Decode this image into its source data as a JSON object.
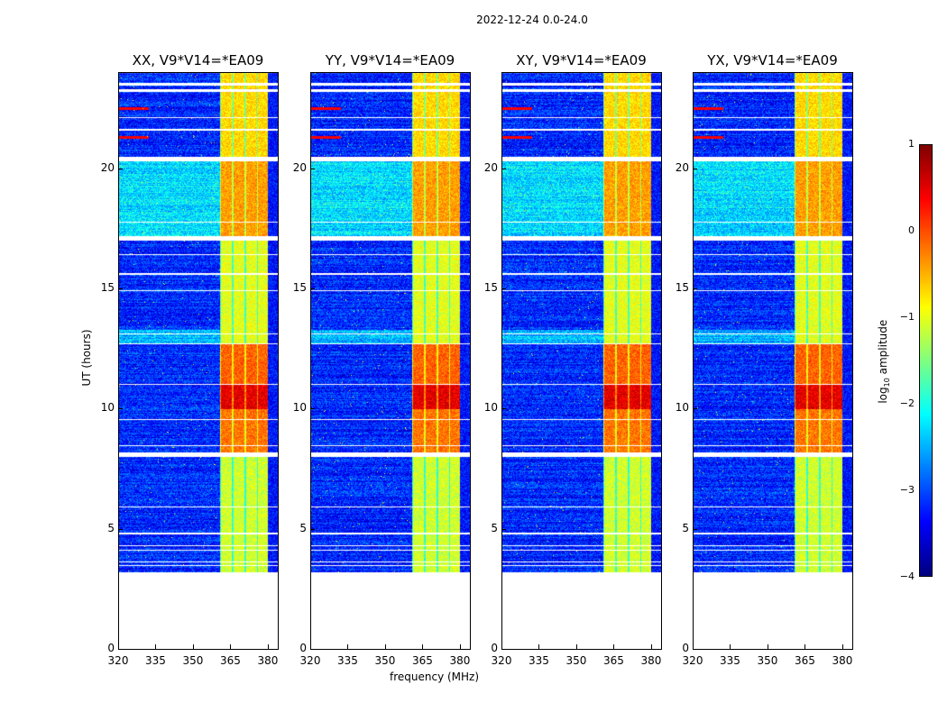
{
  "chart_data": {
    "type": "heatmap",
    "title": "2022-12-24 0.0-24.0",
    "xlabel": "frequency (MHz)",
    "ylabel": "UT (hours)",
    "xlim": [
      320,
      384
    ],
    "ylim": [
      0,
      24
    ],
    "xticks": [
      "320",
      "335",
      "350",
      "365",
      "380"
    ],
    "xtick_values": [
      320,
      335,
      350,
      365,
      380
    ],
    "yticks": [
      "0",
      "5",
      "10",
      "15",
      "20"
    ],
    "ytick_values": [
      0,
      5,
      10,
      15,
      20
    ],
    "panels": [
      {
        "title": "XX, V9*V14=*EA09",
        "seed": 1
      },
      {
        "title": "YY, V9*V14=*EA09",
        "seed": 2
      },
      {
        "title": "XY, V9*V14=*EA09",
        "seed": 3
      },
      {
        "title": "YX, V9*V14=*EA09",
        "seed": 4
      }
    ],
    "data_start_hour": 3.1,
    "rfi_band_mhz": [
      360.5,
      380
    ],
    "background_log_amp": -3.2,
    "rfi_level_periods": [
      {
        "hours": [
          3.1,
          8.2
        ],
        "level": -1.1
      },
      {
        "hours": [
          8.2,
          10.0
        ],
        "level": -0.2
      },
      {
        "hours": [
          10.0,
          11.0
        ],
        "level": 0.5
      },
      {
        "hours": [
          11.0,
          12.7
        ],
        "level": -0.1
      },
      {
        "hours": [
          12.7,
          17.0
        ],
        "level": -1.0
      },
      {
        "hours": [
          17.2,
          20.3
        ],
        "level": -0.4
      },
      {
        "hours": [
          20.5,
          24.0
        ],
        "level": -0.7
      }
    ],
    "flagged_hours": [
      [
        3.1,
        3.2
      ],
      [
        3.45,
        3.5
      ],
      [
        3.6,
        3.65
      ],
      [
        4.1,
        4.15
      ],
      [
        4.3,
        4.35
      ],
      [
        4.8,
        4.85
      ],
      [
        5.9,
        5.95
      ],
      [
        8.0,
        8.2
      ],
      [
        8.45,
        8.5
      ],
      [
        9.55,
        9.6
      ],
      [
        11.0,
        11.05
      ],
      [
        12.7,
        12.75
      ],
      [
        13.1,
        13.15
      ],
      [
        14.9,
        14.95
      ],
      [
        15.6,
        15.65
      ],
      [
        16.4,
        16.45
      ],
      [
        17.0,
        17.2
      ],
      [
        17.75,
        17.8
      ],
      [
        20.3,
        20.5
      ],
      [
        21.6,
        21.65
      ],
      [
        22.1,
        22.15
      ],
      [
        23.2,
        23.3
      ],
      [
        23.45,
        23.55
      ]
    ],
    "colorbar": {
      "label": "log10 amplitude",
      "range": [
        -4,
        1
      ],
      "ticks": [
        "1",
        "0",
        "−1",
        "−2",
        "−3",
        "−4"
      ],
      "tick_values": [
        1,
        0,
        -1,
        -2,
        -3,
        -4
      ]
    }
  }
}
